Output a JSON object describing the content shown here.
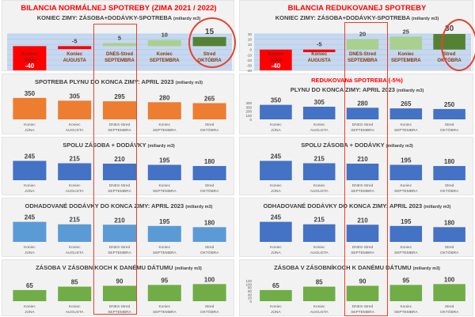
{
  "categories": [
    [
      "Koniec",
      "JÚNA"
    ],
    [
      "Koniec",
      "AUGUSTA"
    ],
    [
      "DNES-Stred",
      "SEPTEMBRA"
    ],
    [
      "Koniec",
      "SEPTEMBRA"
    ],
    [
      "Stred",
      "OKTÓBRA"
    ]
  ],
  "colors": {
    "red": "#ff0000",
    "light_green": "#a9d08e",
    "dark_green": "#548235",
    "orange": "#ed7d31",
    "blue": "#4472c4",
    "light_blue": "#5b9bd5",
    "green": "#70ad47",
    "highlight": "#e8412c"
  },
  "chart_data": [
    {
      "id": "left-balance",
      "type": "bar",
      "title": "BILANCIA NORMÁLNEJ SPOTREBY (ZIMA 2021 / 2022)",
      "subtitle": "KONIEC ZIMY: ZÁSOBA+DODÁVKY-SPOTREBA",
      "unit": "(miliardy m3)",
      "values": [
        -40,
        -5,
        5,
        10,
        15
      ],
      "ylim": [
        -40,
        20
      ],
      "ticks": []
    },
    {
      "id": "right-balance",
      "type": "bar",
      "title": "BILANCIA REDUKOVANEJ SPOTREBY",
      "subtitle": "KONIEC ZIMY: ZÁSOBA+DODÁVKY-SPOTREBA",
      "unit": "(miliardy m3)",
      "values": [
        -40,
        -5,
        20,
        25,
        30
      ],
      "ylim": [
        -40,
        30
      ],
      "ticks": [
        30,
        20,
        10,
        0,
        -10,
        -20,
        -30,
        -40
      ]
    },
    {
      "id": "left-consumption",
      "type": "bar",
      "title": "SPOTREBA PLYNU DO KONCA ZIMY: APRIL 2023",
      "unit": "(miliardy m3)",
      "values": [
        350,
        305,
        295,
        280,
        265
      ],
      "ylim": [
        0,
        400
      ],
      "ticks": [],
      "color": "#ed7d31"
    },
    {
      "id": "right-consumption",
      "type": "bar",
      "redtitle": "REDUKOVANá SPOTREBA (-5%)",
      "title": "PLYNU DO KONCA ZIMY: APRIL 2023",
      "unit": "(miliardy m3)",
      "values": [
        350,
        305,
        280,
        265,
        250
      ],
      "ylim": [
        0,
        400
      ],
      "ticks": [
        400,
        300,
        200,
        100,
        0
      ],
      "color": "#4472c4"
    },
    {
      "id": "left-total",
      "type": "bar",
      "title": "SPOLU ZÁSOBA + DODÁVKY",
      "unit": "(miliardy m3)",
      "values": [
        245,
        215,
        210,
        195,
        180
      ],
      "ylim": [
        0,
        280
      ],
      "ticks": [],
      "color": "#4472c4"
    },
    {
      "id": "right-total",
      "type": "bar",
      "title": "SPOLU ZÁSOBA + DODÁVKY",
      "unit": "(miliardy m3)",
      "values": [
        245,
        215,
        210,
        195,
        180
      ],
      "ylim": [
        0,
        280
      ],
      "ticks": [],
      "color": "#4472c4"
    },
    {
      "id": "left-supply",
      "type": "bar",
      "title": "ODHADOVANÉ DODÁVKY DO KONCA ZIMY: APRIL 2023",
      "unit": "(miliardy m3)",
      "values": [
        245,
        215,
        210,
        195,
        180
      ],
      "ylim": [
        0,
        280
      ],
      "ticks": [],
      "color": "#5b9bd5"
    },
    {
      "id": "right-supply",
      "type": "bar",
      "title": "ODHADOVANÉ DODÁVKY DO KONCA ZIMY: APRIL 2023",
      "unit": "(miliardy m3)",
      "values": [
        245,
        215,
        210,
        195,
        180
      ],
      "ylim": [
        0,
        280
      ],
      "ticks": [],
      "color": "#4472c4"
    },
    {
      "id": "left-storage",
      "type": "bar",
      "title": "ZÁSOBA V ZÁSOBNÍKOCH K DANÉMU DÁTUMU",
      "unit": "(miliardy m3)",
      "values": [
        65,
        85,
        90,
        95,
        100
      ],
      "ylim": [
        0,
        120
      ],
      "ticks": [],
      "color": "#70ad47"
    },
    {
      "id": "right-storage",
      "type": "bar",
      "title": "ZÁSOBA V ZÁSOBNÍKOCH K DANÉMU DÁTUMU",
      "unit": "(miliardy m3)",
      "values": [
        65,
        85,
        90,
        95,
        100
      ],
      "ylim": [
        0,
        120
      ],
      "ticks": [
        120,
        100,
        80,
        60,
        40,
        20,
        0
      ],
      "color": "#70ad47"
    }
  ]
}
